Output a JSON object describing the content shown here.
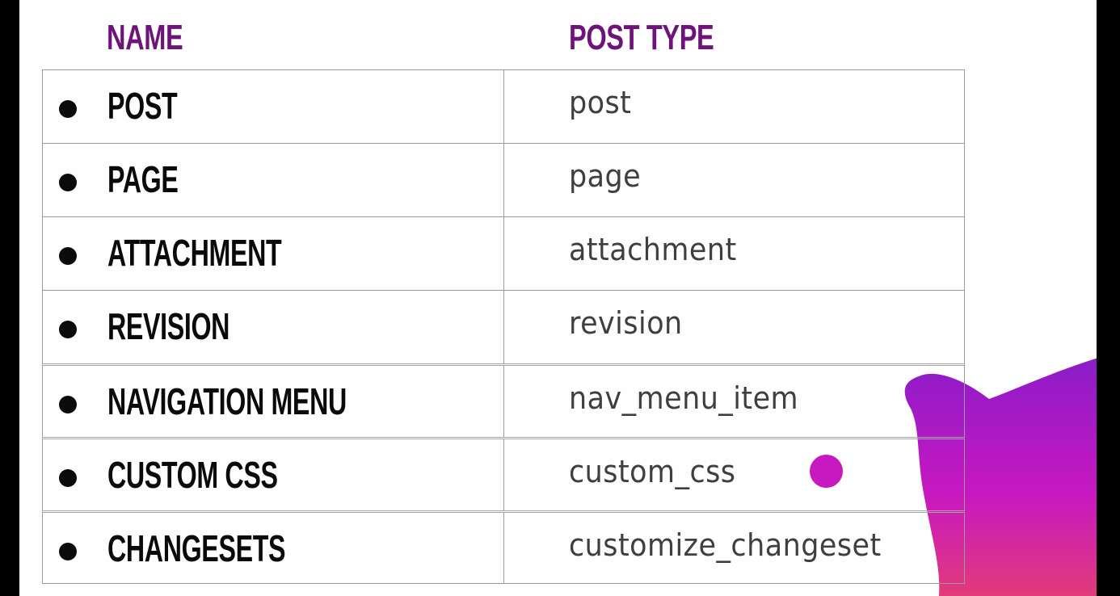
{
  "header": {
    "name_label": "NAME",
    "type_label": "POST TYPE"
  },
  "rows": [
    {
      "name": "POST",
      "type": "post"
    },
    {
      "name": "PAGE",
      "type": "page"
    },
    {
      "name": "ATTACHMENT",
      "type": "attachment"
    },
    {
      "name": "REVISION",
      "type": "revision"
    },
    {
      "name": "NAVIGATION MENU",
      "type": "nav_menu_item"
    },
    {
      "name": "CUSTOM CSS",
      "type": "custom_css"
    },
    {
      "name": "CHANGESETS",
      "type": "customize_changeset"
    }
  ],
  "colors": {
    "header": "#6e1379",
    "accent_gradient_top": "#8a1cc9",
    "accent_gradient_mid": "#c818c0",
    "accent_gradient_bottom": "#e64070",
    "dot": "#c818c0"
  }
}
